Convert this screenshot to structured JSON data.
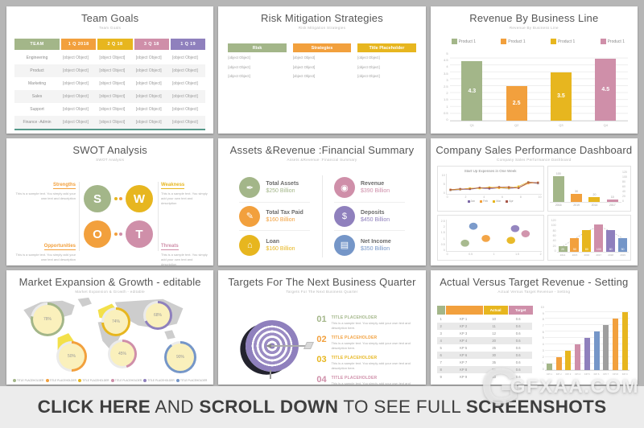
{
  "palette": {
    "green": "#a3b689",
    "orange": "#f2a03d",
    "yellow": "#e7b61f",
    "pink": "#cf8fa9",
    "purple": "#8f80bd",
    "blue": "#7596c8",
    "gray": "#9e9e9e",
    "teal": "#55998a"
  },
  "slide1": {
    "title": "Team Goals",
    "subtitle": "Team Goals",
    "headers": [
      {
        "label": "TEAM",
        "color": "#a3b689"
      },
      {
        "label": "1 Q 2018",
        "color": "#f2a03d"
      },
      {
        "label": "2 Q 18",
        "color": "#e7b61f"
      },
      {
        "label": "3 Q 18",
        "color": "#cf8fa9"
      },
      {
        "label": "1 Q 19",
        "color": "#8f80bd"
      }
    ],
    "rows": [
      {
        "name": "Engineering",
        "cells": [
          "TITLE PLACEHOLDER",
          "",
          "",
          "TITLE PLACEHOLDER"
        ]
      },
      {
        "name": "Product",
        "cells": [
          "",
          "TITLE PLACEHOLDER",
          "",
          ""
        ]
      },
      {
        "name": "Marketing",
        "cells": [
          "TITLE PLACEHOLDER",
          "",
          "TITLE PLACEHOLDER",
          ""
        ]
      },
      {
        "name": "Sales",
        "cells": [
          "",
          "TITLE PLACEHOLDER",
          "",
          "TITLE PLACEHOLDER"
        ]
      },
      {
        "name": "Support",
        "cells": [
          "",
          "",
          "TITLE PLACEHOLDER",
          ""
        ]
      },
      {
        "name": "Finance -Admin",
        "cells": [
          "TITLE PLACEHOLDER",
          "",
          "",
          "TITLE PLACEHOLDER"
        ]
      }
    ]
  },
  "slide2": {
    "title": "Risk Mitigation Strategies",
    "subtitle": "Risk Mitigation Strategies",
    "columns": [
      {
        "header": "Risk",
        "color": "#a3b689",
        "paras": [
          "This is a sample text. You simply add your own text and description This is a sample text. .",
          "This is a sample text. You simply add your own text and description This is a sample text. You simply add your own text and description.",
          "This is a sample text. You simply add your own text and description This is a sample text. You simply add your own text and description."
        ]
      },
      {
        "header": "Strategies",
        "color": "#f2a03d",
        "paras": [
          "This is a sample text. You simply add your own text and description This is a sample text. .",
          "This is a sample text. You simply add your own text and description This is a sample text. You simply add your own text and description.",
          "This is a sample text. You simply add your own text and description This is a sample text. You simply add your own text and description."
        ]
      },
      {
        "header": "Title Placeholder",
        "color": "#e7b61f",
        "paras": [
          "This is a sample text. You simply add your own text and description This is a sample text. .",
          "This is a sample text. You simply add your own text and description This is a sample text. You simply add your own text and description.",
          "This is a sample text. You simply add your own text and description This is a sample text. You simply add your own text and description."
        ]
      }
    ]
  },
  "slide3": {
    "title": "Revenue By Business Line",
    "subtitle": "Revenue By Business Line",
    "legend": [
      {
        "label": "Product 1",
        "color": "#a3b689"
      },
      {
        "label": "Product 1",
        "color": "#f2a03d"
      },
      {
        "label": "Product 1",
        "color": "#e7b61f"
      },
      {
        "label": "Product 1",
        "color": "#cf8fa9"
      }
    ]
  },
  "slide4": {
    "title": "SWOT Analysis",
    "subtitle": "SWOT Analysis",
    "quadrants": [
      {
        "letter": "S",
        "label": "Strengths",
        "circle": "#a3b689",
        "label_color": "#f2a03d",
        "text": "This is a sample text. You simply add your own text and description"
      },
      {
        "letter": "W",
        "label": "Weakness",
        "circle": "#e7b61f",
        "label_color": "#e7b61f",
        "text": "This is a sample text. You simply add your own text and description"
      },
      {
        "letter": "O",
        "label": "Opportunities",
        "circle": "#f2a03d",
        "label_color": "#f2a03d",
        "text": "This is a sample text. You simply add your own text and description"
      },
      {
        "letter": "T",
        "label": "Threats",
        "circle": "#cf8fa9",
        "label_color": "#cf8fa9",
        "text": "This is a sample text. You simply add your own text and description"
      }
    ]
  },
  "slide5": {
    "title": "Assets &Revenue :Financial Summary",
    "subtitle": "Assets &Revenue :Financial Summary",
    "items": [
      {
        "title": "Total Assets",
        "value": "$250 Billion",
        "color": "#a3b689",
        "icon": "✒",
        "icon_name": "pen-icon"
      },
      {
        "title": "Revenue",
        "value": "$390 Billion",
        "color": "#cf8fa9",
        "icon": "◉",
        "icon_name": "coins-icon"
      },
      {
        "title": "Total Tax Paid",
        "value": "$160 Billion",
        "color": "#f2a03d",
        "icon": "✎",
        "icon_name": "document-edit-icon"
      },
      {
        "title": "Deposits",
        "value": "$450 Billion",
        "color": "#8f80bd",
        "icon": "$",
        "icon_name": "money-bag-icon"
      },
      {
        "title": "Loan",
        "value": "$160 Billion",
        "color": "#e7b61f",
        "icon": "⌂",
        "icon_name": "home-loan-icon"
      },
      {
        "title": "Net Income",
        "value": "$350 Billion",
        "color": "#7596c8",
        "icon": "▤",
        "icon_name": "banknote-icon"
      }
    ]
  },
  "slide6": {
    "title": "Company Sales Performance Dashboard",
    "subtitle": "Company Sales Performance Dashboard"
  },
  "slide7": {
    "title": "Market Expansion & Growth - editable",
    "subtitle": "Market Expansion & Growth - editable",
    "legend": [
      {
        "label": "TITLE PLACEHOLDER",
        "color": "#a3b689"
      },
      {
        "label": "TITLE PLACEHOLDER",
        "color": "#f2a03d"
      },
      {
        "label": "TITLE PLACEHOLDER",
        "color": "#e7b61f"
      },
      {
        "label": "TITLE PLACEHOLDER",
        "color": "#cf8fa9"
      },
      {
        "label": "TITLE PLACEHOLDER",
        "color": "#8f80bd"
      },
      {
        "label": "TITLE PLACEHOLDER",
        "color": "#7596c8"
      }
    ]
  },
  "slide8": {
    "title": "Targets For The Next Business Quarter",
    "subtitle": "Targets For The Next Business Quarter",
    "items": [
      {
        "num": "01",
        "heading": "TITLE PLACEHOLDER",
        "color": "#a3b689",
        "text": "This is a sample text. You simply add your own text and description here."
      },
      {
        "num": "02",
        "heading": "TITLE PLACEHOLDER",
        "color": "#f2a03d",
        "text": "This is a sample text. You simply add your own text and description here."
      },
      {
        "num": "03",
        "heading": "TITLE PLACEHOLDER",
        "color": "#e7b61f",
        "text": "This is a sample text. You simply add your own text and description here."
      },
      {
        "num": "04",
        "heading": "TITLE PLACEHOLDER",
        "color": "#cf8fa9",
        "text": "This is a sample text. You simply add your own text and description here."
      }
    ]
  },
  "slide9": {
    "title": "Actual Versus Target Revenue - Setting",
    "subtitle": "Actual Versus Target Revenue - Setting"
  },
  "banner": {
    "segments": [
      {
        "text": "CLICK HERE",
        "weight": "800"
      },
      {
        "text": " AND ",
        "weight": "400"
      },
      {
        "text": "SCROLL DOWN",
        "weight": "800"
      },
      {
        "text": " TO SEE FULL ",
        "weight": "400"
      },
      {
        "text": "SCREENSHOTS",
        "weight": "800"
      }
    ]
  },
  "watermark": {
    "letter": "G",
    "text": "GFXAA.COM"
  },
  "chart_data": [
    {
      "id": "revenue-by-business-line",
      "type": "bar",
      "title": "Revenue By Business Line",
      "categories": [
        "Q1",
        "Q2",
        "Q3",
        "Q4"
      ],
      "values": [
        4.3,
        2.5,
        3.5,
        4.5
      ],
      "colors": [
        "#a3b689",
        "#f2a03d",
        "#e7b61f",
        "#cf8fa9"
      ],
      "legend": [
        "Product 1",
        "Product 1",
        "Product 1",
        "Product 1"
      ],
      "ylim": [
        0,
        5
      ],
      "yticks": [
        "5",
        "4.5",
        "4",
        "3.5",
        "3",
        "2.5",
        "2",
        "1.5",
        "1",
        "0.5",
        "0"
      ]
    },
    {
      "id": "startup-expenses",
      "type": "line",
      "title": "Start Up Expenses in One Week",
      "x": [
        "0",
        "2",
        "4",
        "6",
        "8",
        "10"
      ],
      "ylim": [
        0,
        10
      ],
      "yticks": [
        "10",
        "5",
        "0"
      ],
      "series": [
        {
          "name": "Jan",
          "color": "#7e6aa8",
          "values": [
            0.8,
            1.2,
            1.5,
            2.2,
            1.8,
            2.4,
            2.0,
            2.6,
            5.8,
            5.2
          ]
        },
        {
          "name": "Feb",
          "color": "#f2a03d",
          "values": [
            1.4,
            1.6,
            2.0,
            2.4,
            2.6,
            2.2,
            3.0,
            2.4,
            5.2,
            6.0
          ]
        },
        {
          "name": "Mar",
          "color": "#e7b61f",
          "values": [
            1.0,
            1.4,
            2.2,
            2.0,
            2.8,
            2.6,
            2.2,
            3.4,
            6.2,
            5.6
          ]
        },
        {
          "name": "Apr",
          "color": "#a8584a",
          "values": [
            1.2,
            1.8,
            1.6,
            2.6,
            2.2,
            3.0,
            2.8,
            2.2,
            6.0,
            5.8
          ]
        }
      ]
    },
    {
      "id": "yearly-sales",
      "type": "bar",
      "categories": [
        "2016",
        "2019",
        "2014",
        "2017"
      ],
      "values": [
        100,
        30,
        20,
        10
      ],
      "colors": [
        "#a3b689",
        "#f2a03d",
        "#e7b61f",
        "#cf8fa9"
      ],
      "ylim": [
        0,
        120
      ],
      "yticks": [
        "120",
        "100",
        "80",
        "60",
        "40",
        "20",
        "0"
      ]
    },
    {
      "id": "sales-bubbles",
      "type": "scatter",
      "xlim": [
        0,
        2
      ],
      "ylim": [
        0,
        2.5
      ],
      "xticks": [
        "0",
        "0.5",
        "1",
        "1.5",
        "2"
      ],
      "yticks": [
        "2.5",
        "2",
        "1.5",
        "1",
        "0.5",
        "0"
      ],
      "points": [
        {
          "x": 0.3,
          "y": 0.5,
          "color": "#a3b689"
        },
        {
          "x": 0.5,
          "y": 2.3,
          "color": "#7596c8"
        },
        {
          "x": 0.8,
          "y": 1.0,
          "color": "#f2a03d"
        },
        {
          "x": 1.4,
          "y": 0.8,
          "color": "#e7b61f"
        },
        {
          "x": 1.5,
          "y": 2.05,
          "color": "#8f80bd"
        },
        {
          "x": 1.75,
          "y": 1.5,
          "color": "#cf8fa9"
        }
      ]
    },
    {
      "id": "distribution-bars",
      "type": "bar",
      "categories": [
        "2014",
        "2015",
        "2016",
        "2017",
        "2018",
        "2019"
      ],
      "values": [
        20,
        50,
        80,
        100,
        80,
        50
      ],
      "colors": [
        "#a3b689",
        "#f2a03d",
        "#e7b61f",
        "#cf8fa9",
        "#8f80bd",
        "#7596c8"
      ],
      "ylim": [
        0,
        120
      ],
      "yticks": [
        "120",
        "100",
        "80",
        "60",
        "40",
        "20",
        "0"
      ],
      "curve": true
    },
    {
      "id": "market-expansion-donuts",
      "type": "pie",
      "items": [
        {
          "region": "north-america",
          "pct": "78%",
          "color": "#a3b689"
        },
        {
          "region": "europe",
          "pct": "74%",
          "color": "#e7b61f"
        },
        {
          "region": "asia",
          "pct": "68%",
          "color": "#8f80bd"
        },
        {
          "region": "south-america",
          "pct": "50%",
          "color": "#f2a03d"
        },
        {
          "region": "africa",
          "pct": "45%",
          "color": "#cf8fa9"
        },
        {
          "region": "australia",
          "pct": "90%",
          "color": "#7596c8"
        }
      ]
    },
    {
      "id": "kpi-bars",
      "type": "bar",
      "categories": [
        "KPI 1",
        "KPI 2",
        "KPI 3",
        "KPI 4",
        "KPI 5",
        "KPI 6",
        "KPI 7",
        "KPI 8",
        "KPI 9"
      ],
      "values": [
        1,
        2,
        3,
        4,
        5,
        6,
        7,
        8,
        9
      ],
      "colors": [
        "#a3b689",
        "#f2a03d",
        "#e7b61f",
        "#cf8fa9",
        "#8f80bd",
        "#7596c8",
        "#9e9e9e",
        "#f2a03d",
        "#e7b61f"
      ],
      "ylim": [
        0,
        10
      ],
      "yticks": [
        "10",
        "9",
        "8",
        "7",
        "6",
        "5",
        "4",
        "3",
        "2",
        "1",
        "0"
      ]
    },
    {
      "id": "kpi-table",
      "type": "table",
      "headers": [
        "",
        "",
        "Actual",
        "Target"
      ],
      "rows": [
        {
          "n": "1",
          "kp": "KP 1",
          "actual": "10",
          "target": "0.6"
        },
        {
          "n": "2",
          "kp": "KP 2",
          "actual": "11",
          "target": "0.6"
        },
        {
          "n": "3",
          "kp": "KP 3",
          "actual": "12",
          "target": "0.6"
        },
        {
          "n": "4",
          "kp": "KP 4",
          "actual": "20",
          "target": "0.6"
        },
        {
          "n": "5",
          "kp": "KP 5",
          "actual": "25",
          "target": "0.6"
        },
        {
          "n": "6",
          "kp": "KP 6",
          "actual": "30",
          "target": "0.6"
        },
        {
          "n": "7",
          "kp": "KP 7",
          "actual": "35",
          "target": "0.6"
        },
        {
          "n": "8",
          "kp": "KP 8",
          "actual": "50",
          "target": "0.6"
        },
        {
          "n": "9",
          "kp": "KP 9",
          "actual": "63",
          "target": "0.6"
        }
      ]
    }
  ]
}
